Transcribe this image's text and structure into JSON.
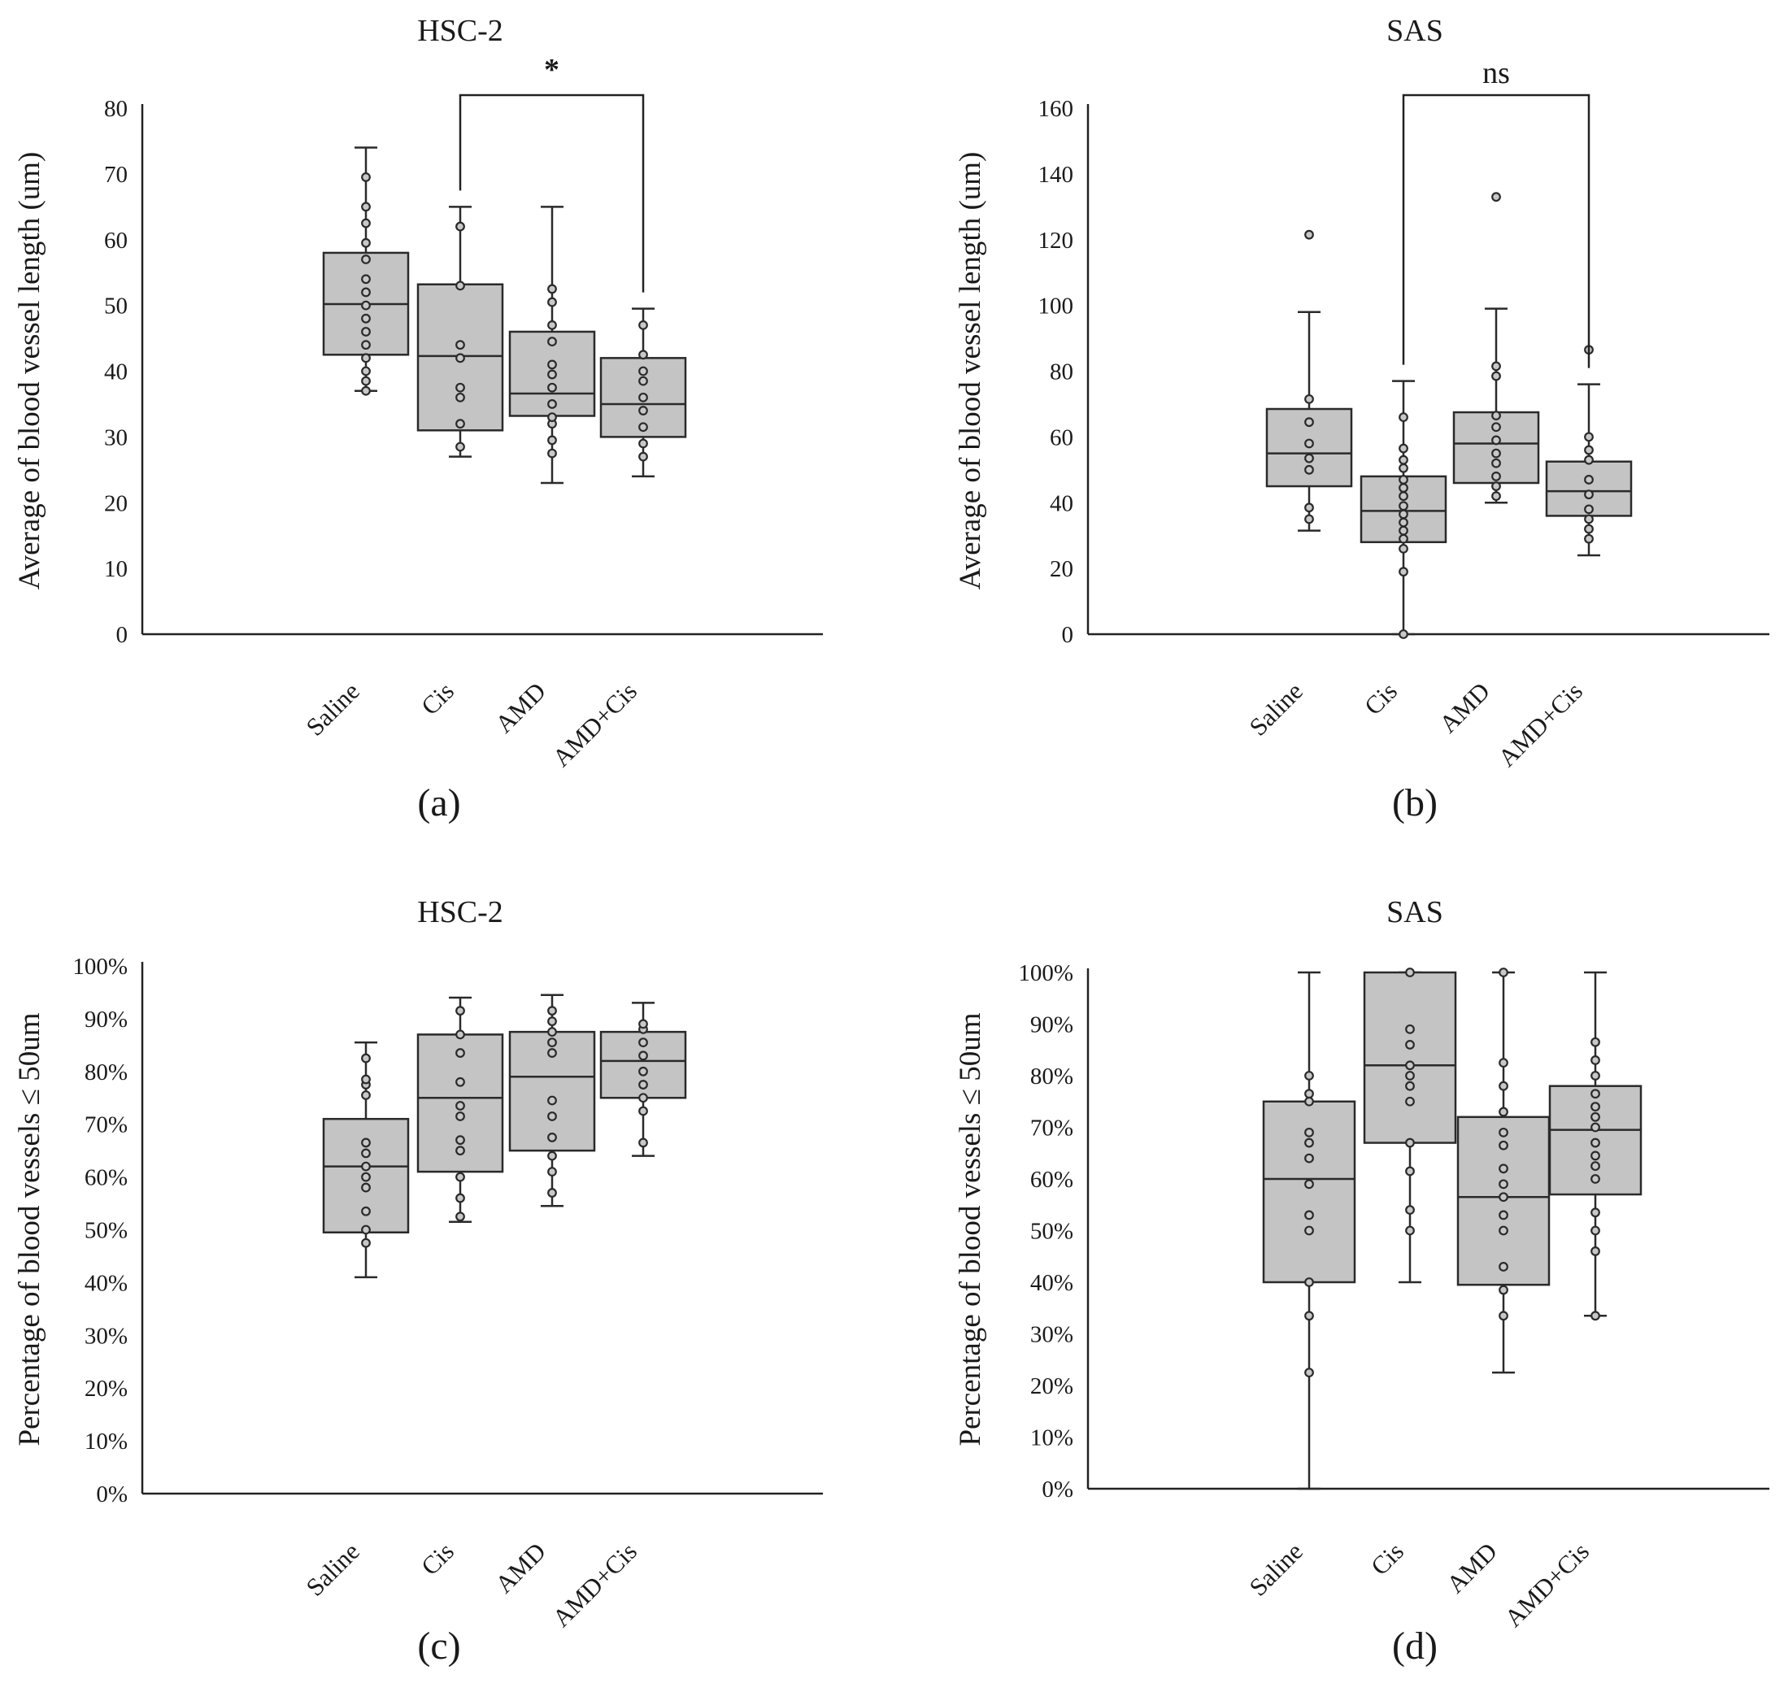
{
  "chart_data": [
    {
      "type": "box",
      "title": "HSC-2",
      "ylabel": "Average of blood vessel length (um)",
      "panel_label": "(a)",
      "ylim": [
        0,
        80
      ],
      "yticks": [
        0,
        10,
        20,
        30,
        40,
        50,
        60,
        70,
        80
      ],
      "ytick_labels": [
        "0",
        "10",
        "20",
        "30",
        "40",
        "50",
        "60",
        "70",
        "80"
      ],
      "categories": [
        "Saline",
        "Cis",
        "AMD",
        "AMD+Cis"
      ],
      "boxes": [
        {
          "whisker_low": 37,
          "q1": 42.5,
          "median": 50.2,
          "q3": 58,
          "whisker_high": 74,
          "points": [
            37,
            38.5,
            40,
            42,
            44,
            46,
            48,
            50,
            52,
            54,
            57,
            59.5,
            62.5,
            65,
            69.5
          ]
        },
        {
          "whisker_low": 27,
          "q1": 31,
          "median": 42.3,
          "q3": 53.2,
          "whisker_high": 65,
          "points": [
            28.5,
            32,
            36,
            37.5,
            42,
            44,
            53,
            62
          ]
        },
        {
          "whisker_low": 23,
          "q1": 33.2,
          "median": 36.6,
          "q3": 46,
          "whisker_high": 65,
          "points": [
            27.5,
            29.5,
            32,
            33,
            35,
            37.5,
            39.5,
            41,
            44.5,
            47,
            50.5,
            52.5
          ]
        },
        {
          "whisker_low": 24,
          "q1": 30,
          "median": 35,
          "q3": 42,
          "whisker_high": 49.5,
          "points": [
            27,
            29,
            31.5,
            34,
            36,
            38.5,
            40,
            42.5,
            47
          ]
        }
      ],
      "significance": {
        "label": "*",
        "from": "Cis",
        "to": "AMD+Cis"
      }
    },
    {
      "type": "box",
      "title": "SAS",
      "ylabel": "Average of blood vessel length (um)",
      "panel_label": "(b)",
      "ylim": [
        0,
        160
      ],
      "yticks": [
        0,
        20,
        40,
        60,
        80,
        100,
        120,
        140,
        160
      ],
      "ytick_labels": [
        "0",
        "20",
        "40",
        "60",
        "80",
        "100",
        "120",
        "140",
        "160"
      ],
      "categories": [
        "Saline",
        "Cis",
        "AMD",
        "AMD+Cis"
      ],
      "boxes": [
        {
          "whisker_low": 31.5,
          "q1": 45,
          "median": 55,
          "q3": 68.5,
          "whisker_high": 98,
          "points": [
            35,
            38.5,
            50,
            53.5,
            58,
            64.5,
            71.5,
            121.5
          ]
        },
        {
          "whisker_low": 0,
          "q1": 28,
          "median": 37.5,
          "q3": 48,
          "whisker_high": 77,
          "points": [
            0,
            19,
            26,
            29,
            31.5,
            34,
            36.5,
            39,
            42,
            44.5,
            47,
            50.5,
            53,
            56.5,
            66
          ]
        },
        {
          "whisker_low": 40,
          "q1": 46,
          "median": 58,
          "q3": 67.5,
          "whisker_high": 99,
          "points": [
            42,
            45,
            48,
            52,
            55,
            59,
            63,
            66.5,
            78.5,
            81.5,
            133
          ]
        },
        {
          "whisker_low": 24,
          "q1": 36,
          "median": 43.5,
          "q3": 52.5,
          "whisker_high": 76,
          "points": [
            29,
            32,
            35,
            38,
            42.5,
            47,
            53,
            56,
            60,
            86.5
          ]
        }
      ],
      "significance": {
        "label": "ns",
        "from": "Cis",
        "to": "AMD+Cis"
      }
    },
    {
      "type": "box",
      "title": "HSC-2",
      "ylabel": "Percentage of blood vessels ≤ 50um",
      "panel_label": "(c)",
      "ylim": [
        0,
        100
      ],
      "yticks": [
        0,
        10,
        20,
        30,
        40,
        50,
        60,
        70,
        80,
        90,
        100
      ],
      "ytick_labels": [
        "0%",
        "10%",
        "20%",
        "30%",
        "40%",
        "50%",
        "60%",
        "70%",
        "80%",
        "90%",
        "100%"
      ],
      "categories": [
        "Saline",
        "Cis",
        "AMD",
        "AMD+Cis"
      ],
      "boxes": [
        {
          "whisker_low": 41,
          "q1": 49.5,
          "median": 62,
          "q3": 71,
          "whisker_high": 85.5,
          "points": [
            47.5,
            50,
            53.5,
            58,
            60,
            62,
            64.5,
            66.5,
            75.5,
            77.5,
            78.5,
            82.5
          ]
        },
        {
          "whisker_low": 51.5,
          "q1": 61,
          "median": 75,
          "q3": 87,
          "whisker_high": 94,
          "points": [
            52.5,
            56,
            60,
            65,
            67,
            71.5,
            73.5,
            78,
            83.5,
            87,
            91.5
          ]
        },
        {
          "whisker_low": 54.5,
          "q1": 65,
          "median": 79,
          "q3": 87.5,
          "whisker_high": 94.5,
          "points": [
            57,
            61,
            64,
            67.5,
            71.5,
            74.5,
            83.5,
            85.5,
            87.5,
            89.5,
            91.5
          ]
        },
        {
          "whisker_low": 64,
          "q1": 75,
          "median": 82,
          "q3": 87.5,
          "whisker_high": 93,
          "points": [
            66.5,
            72.5,
            75,
            77.5,
            80,
            83,
            85.5,
            88,
            89
          ]
        }
      ]
    },
    {
      "type": "box",
      "title": "SAS",
      "ylabel": "Percentage of blood vessels ≤ 50um",
      "panel_label": "(d)",
      "ylim": [
        0,
        100
      ],
      "yticks": [
        0,
        10,
        20,
        30,
        40,
        50,
        60,
        70,
        80,
        90,
        100
      ],
      "ytick_labels": [
        "0%",
        "10%",
        "20%",
        "30%",
        "40%",
        "50%",
        "60%",
        "70%",
        "80%",
        "90%",
        "100%"
      ],
      "categories": [
        "Saline",
        "Cis",
        "AMD",
        "AMD+Cis"
      ],
      "boxes": [
        {
          "whisker_low": 0,
          "q1": 40,
          "median": 60,
          "q3": 75,
          "whisker_high": 100,
          "points": [
            22.5,
            33.5,
            40,
            50,
            53,
            59,
            64,
            67,
            69,
            75,
            76.5,
            80
          ]
        },
        {
          "whisker_low": 40,
          "q1": 67,
          "median": 82,
          "q3": 100,
          "whisker_high": 100,
          "points": [
            50,
            54,
            61.5,
            67,
            75,
            78,
            80,
            82,
            86,
            89,
            100
          ]
        },
        {
          "whisker_low": 22.5,
          "q1": 39.5,
          "median": 56.5,
          "q3": 72,
          "whisker_high": 100,
          "points": [
            33.5,
            38.5,
            43,
            50,
            53,
            56.5,
            59,
            62,
            66.5,
            69,
            73,
            78,
            82.5,
            100
          ]
        },
        {
          "whisker_low": 33.5,
          "q1": 57,
          "median": 69.5,
          "q3": 78,
          "whisker_high": 100,
          "points": [
            33.5,
            46,
            50,
            53.5,
            60,
            62.5,
            64.5,
            67,
            70,
            72,
            74,
            76.5,
            80,
            83,
            86.5
          ]
        }
      ]
    }
  ]
}
